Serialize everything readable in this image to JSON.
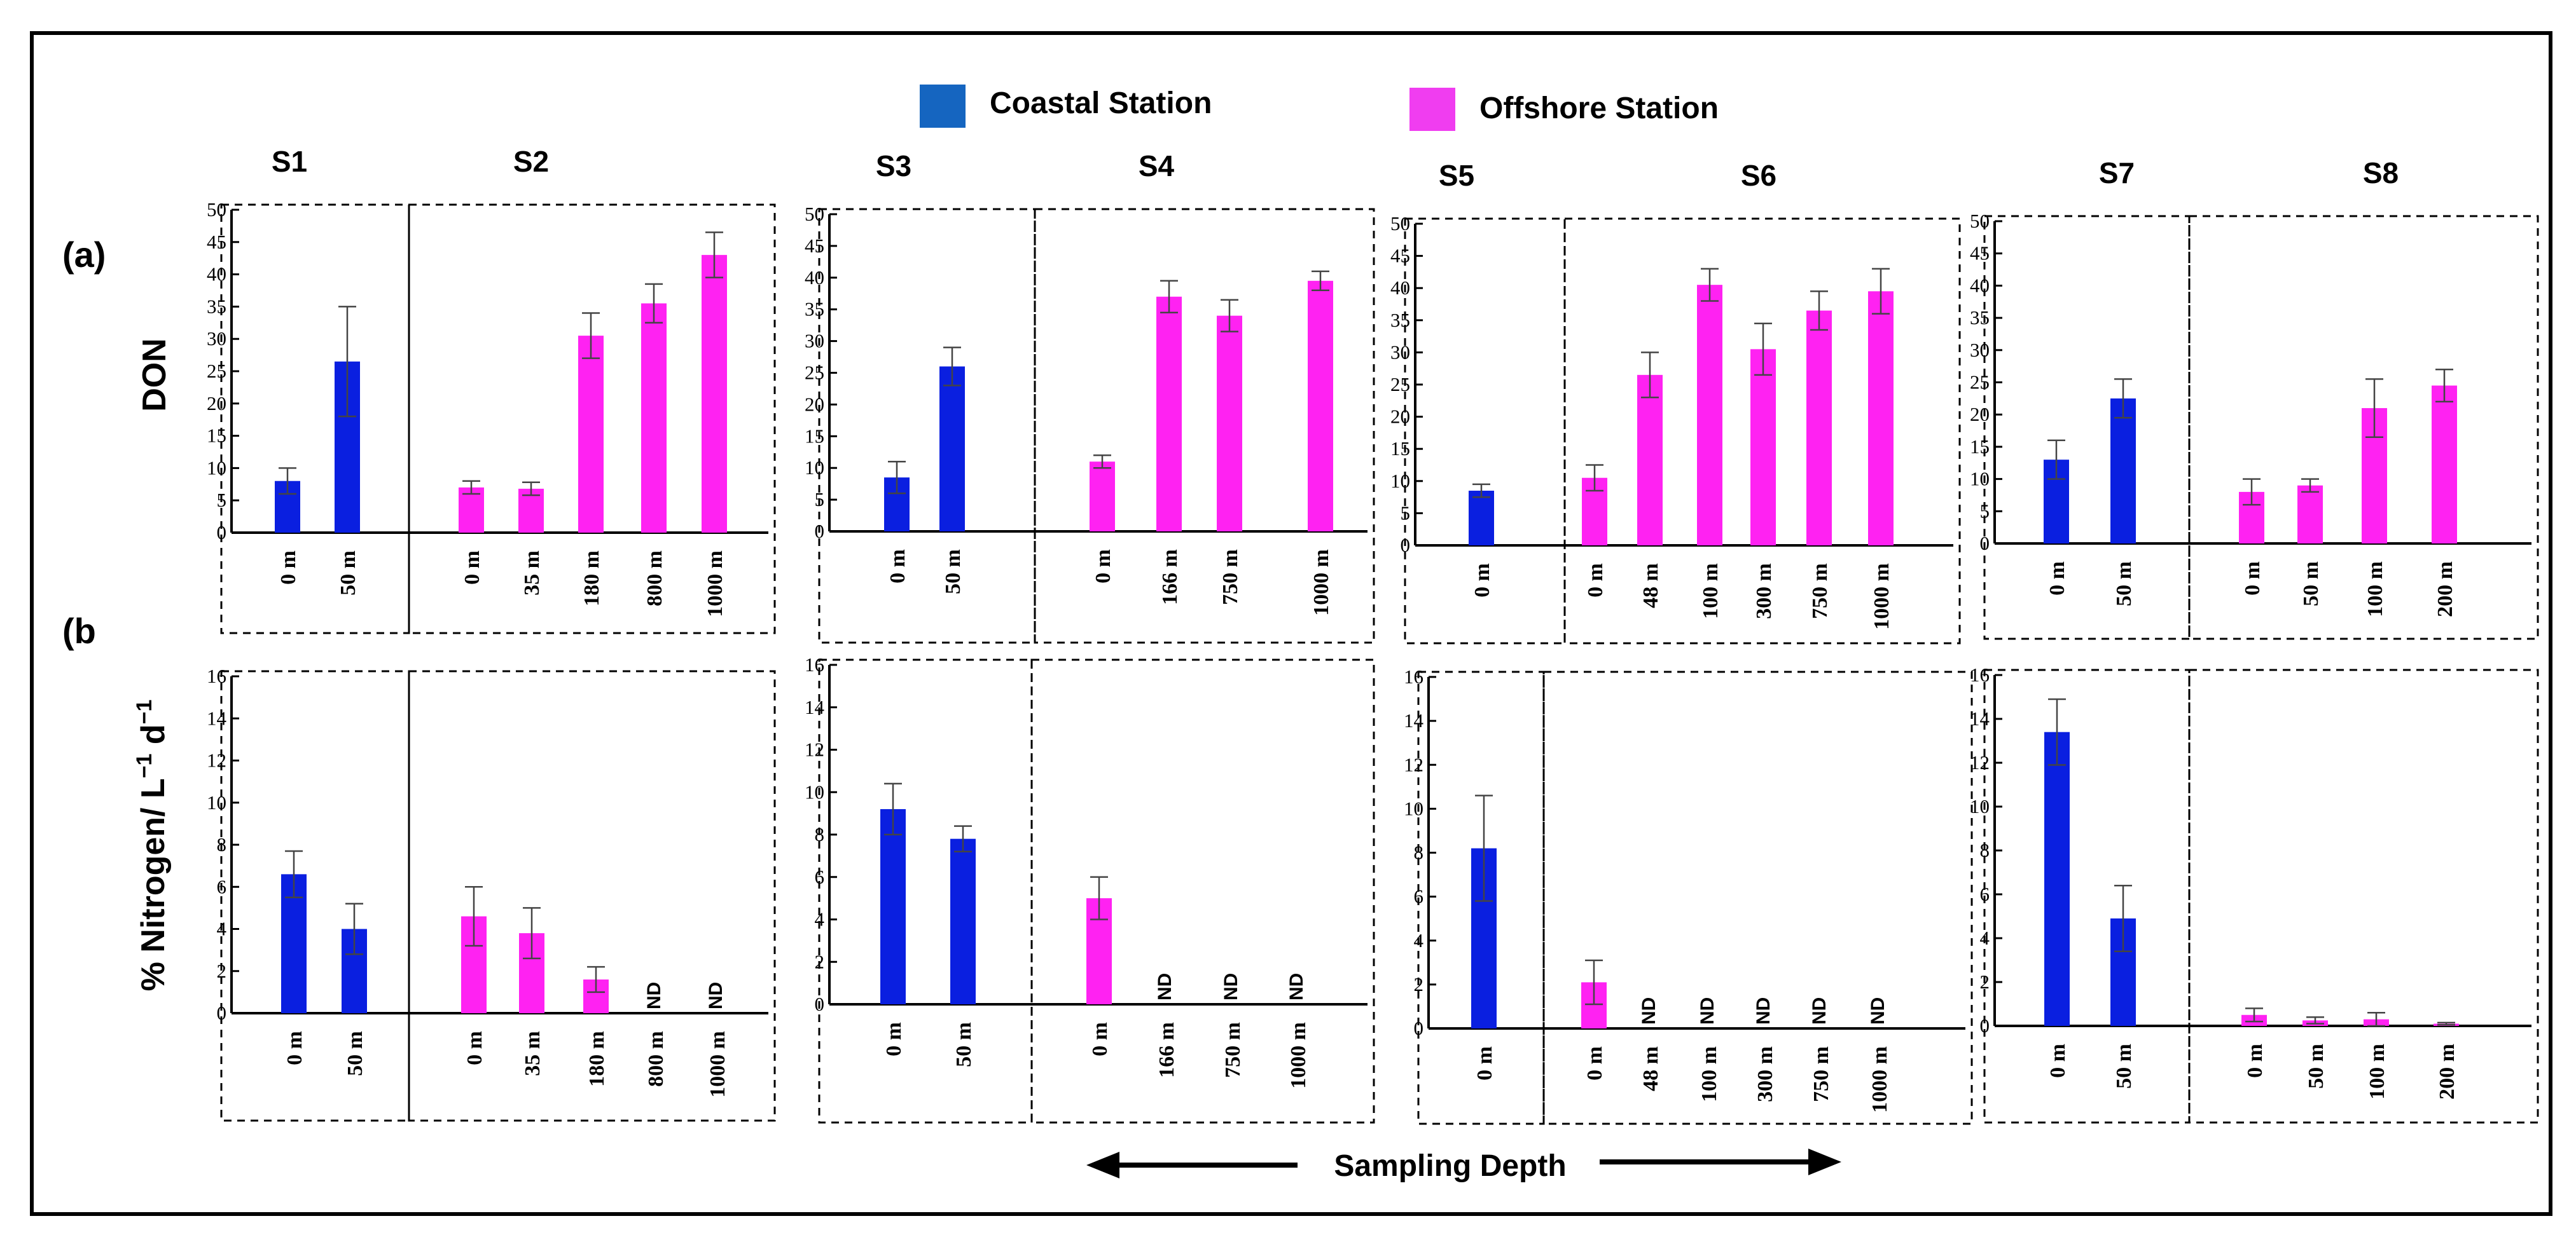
{
  "legend": [
    {
      "label": "Coastal Station",
      "color": "#0a1fe0",
      "swatch": "#1565c0"
    },
    {
      "label": "Offshore Station",
      "color": "#ff22f2",
      "swatch": "#f03df0"
    }
  ],
  "panel_labels": {
    "a": "(a)",
    "b": "(b"
  },
  "ylabels": {
    "top": "DON",
    "bottom_main": "% Nitrogen/ L",
    "sup1": "−1",
    "bottom_mid": " d",
    "sup2": "−1"
  },
  "xlabel": "Sampling Depth",
  "nd_label": "ND",
  "chart_data": [
    {
      "type": "bar",
      "row": "a",
      "ylim": [
        0,
        50
      ],
      "yticks": [
        0,
        5,
        10,
        15,
        20,
        25,
        30,
        35,
        40,
        45,
        50
      ],
      "ylabel": "DON",
      "stations": [
        "S1",
        "S2"
      ],
      "groups": [
        {
          "station": "S1",
          "kind": "coastal",
          "categories": [
            "0 m",
            "50 m"
          ],
          "values": [
            8,
            26.5
          ],
          "errors": [
            2,
            8.5
          ]
        },
        {
          "station": "S2",
          "kind": "offshore",
          "categories": [
            "0 m",
            "35 m",
            "180 m",
            "800 m",
            "1000 m"
          ],
          "values": [
            7,
            6.8,
            30.5,
            35.5,
            43
          ],
          "errors": [
            1,
            1,
            3.5,
            3,
            3.5
          ]
        }
      ]
    },
    {
      "type": "bar",
      "row": "a",
      "ylim": [
        0,
        50
      ],
      "yticks": [
        0,
        5,
        10,
        15,
        20,
        25,
        30,
        35,
        40,
        45,
        50
      ],
      "stations": [
        "S3",
        "S4"
      ],
      "groups": [
        {
          "station": "S3",
          "kind": "coastal",
          "categories": [
            "0 m",
            "50 m"
          ],
          "values": [
            8.5,
            26
          ],
          "errors": [
            2.5,
            3
          ]
        },
        {
          "station": "S4",
          "kind": "offshore",
          "categories": [
            "0 m",
            "166 m",
            "750 m",
            "1000 m"
          ],
          "values": [
            11,
            37,
            34,
            39.5
          ],
          "errors": [
            1,
            2.5,
            2.5,
            1.5
          ]
        }
      ]
    },
    {
      "type": "bar",
      "row": "a",
      "ylim": [
        0,
        50
      ],
      "yticks": [
        0,
        5,
        10,
        15,
        20,
        25,
        30,
        35,
        40,
        45,
        50
      ],
      "stations": [
        "S5",
        "S6"
      ],
      "groups": [
        {
          "station": "S5",
          "kind": "coastal",
          "categories": [
            "0 m"
          ],
          "values": [
            8.5
          ],
          "errors": [
            1
          ]
        },
        {
          "station": "S6",
          "kind": "offshore",
          "categories": [
            "0 m",
            "48 m",
            "100 m",
            "300 m",
            "750 m",
            "1000 m"
          ],
          "values": [
            10.5,
            26.5,
            40.5,
            30.5,
            36.5,
            39.5
          ],
          "errors": [
            2,
            3.5,
            2.5,
            4,
            3,
            3.5
          ]
        }
      ]
    },
    {
      "type": "bar",
      "row": "a",
      "ylim": [
        0,
        50
      ],
      "yticks": [
        0,
        5,
        10,
        15,
        20,
        25,
        30,
        35,
        40,
        45,
        50
      ],
      "stations": [
        "S7",
        "S8"
      ],
      "groups": [
        {
          "station": "S7",
          "kind": "coastal",
          "categories": [
            "0 m",
            "50 m"
          ],
          "values": [
            13,
            22.5
          ],
          "errors": [
            3,
            3
          ]
        },
        {
          "station": "S8",
          "kind": "offshore",
          "categories": [
            "0 m",
            "50 m",
            "100 m",
            "200 m"
          ],
          "values": [
            8,
            9,
            21,
            24.5
          ],
          "errors": [
            2,
            1,
            4.5,
            2.5
          ]
        }
      ]
    },
    {
      "type": "bar",
      "row": "b",
      "ylim": [
        0,
        16
      ],
      "yticks": [
        0,
        2,
        4,
        6,
        8,
        10,
        12,
        14,
        16
      ],
      "ylabel": "% Nitrogen/ L−1 d−1",
      "groups": [
        {
          "station": "S1",
          "kind": "coastal",
          "categories": [
            "0 m",
            "50 m"
          ],
          "values": [
            6.6,
            4
          ],
          "errors": [
            1.1,
            1.2
          ]
        },
        {
          "station": "S2",
          "kind": "offshore",
          "categories": [
            "0 m",
            "35 m",
            "180 m",
            "800 m",
            "1000 m"
          ],
          "values": [
            4.6,
            3.8,
            1.6,
            null,
            null
          ],
          "errors": [
            1.4,
            1.2,
            0.6,
            null,
            null
          ]
        }
      ]
    },
    {
      "type": "bar",
      "row": "b",
      "ylim": [
        0,
        16
      ],
      "yticks": [
        0,
        2,
        4,
        6,
        8,
        10,
        12,
        14,
        16
      ],
      "groups": [
        {
          "station": "S3",
          "kind": "coastal",
          "categories": [
            "0 m",
            "50 m"
          ],
          "values": [
            9.2,
            7.8
          ],
          "errors": [
            1.2,
            0.6
          ]
        },
        {
          "station": "S4",
          "kind": "offshore",
          "categories": [
            "0 m",
            "166 m",
            "750 m",
            "1000 m"
          ],
          "values": [
            5,
            null,
            null,
            null
          ],
          "errors": [
            1,
            null,
            null,
            null
          ]
        }
      ]
    },
    {
      "type": "bar",
      "row": "b",
      "ylim": [
        0,
        16
      ],
      "yticks": [
        0,
        2,
        4,
        6,
        8,
        10,
        12,
        14,
        16
      ],
      "groups": [
        {
          "station": "S5",
          "kind": "coastal",
          "categories": [
            "0 m"
          ],
          "values": [
            8.2
          ],
          "errors": [
            2.4
          ]
        },
        {
          "station": "S6",
          "kind": "offshore",
          "categories": [
            "0 m",
            "48 m",
            "100 m",
            "300 m",
            "750 m",
            "1000 m"
          ],
          "values": [
            2.1,
            null,
            null,
            null,
            null,
            null
          ],
          "errors": [
            1,
            null,
            null,
            null,
            null,
            null
          ]
        }
      ]
    },
    {
      "type": "bar",
      "row": "b",
      "ylim": [
        0,
        16
      ],
      "yticks": [
        0,
        2,
        4,
        6,
        8,
        10,
        12,
        14,
        16
      ],
      "groups": [
        {
          "station": "S7",
          "kind": "coastal",
          "categories": [
            "0 m",
            "50 m"
          ],
          "values": [
            13.4,
            4.9
          ],
          "errors": [
            1.5,
            1.5
          ]
        },
        {
          "station": "S8",
          "kind": "offshore",
          "categories": [
            "0 m",
            "50 m",
            "100 m",
            "200 m"
          ],
          "values": [
            0.5,
            0.25,
            0.3,
            0.1
          ],
          "errors": [
            0.3,
            0.15,
            0.3,
            0.05
          ]
        }
      ]
    }
  ]
}
